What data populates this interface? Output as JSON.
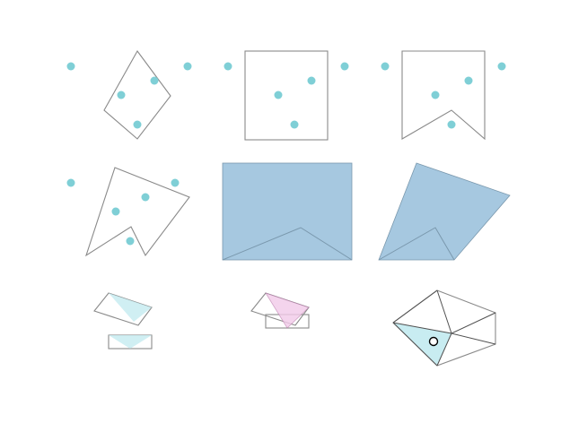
{
  "colors": {
    "outline": "#8a8a8a",
    "point": "#7fcfd6",
    "fill_blue": "#a6c8e0",
    "fill_blue_stroke": "#7a98ad",
    "fill_cyan": "#c8ecf1",
    "fill_pink": "#f1c9e8",
    "pink_stroke": "#b577a6",
    "triangle_edge": "#505050",
    "marker_fill": "#ffffff",
    "marker_stroke": "#000000"
  },
  "panels": {
    "count": 9,
    "rows": 3,
    "columns": 3
  }
}
